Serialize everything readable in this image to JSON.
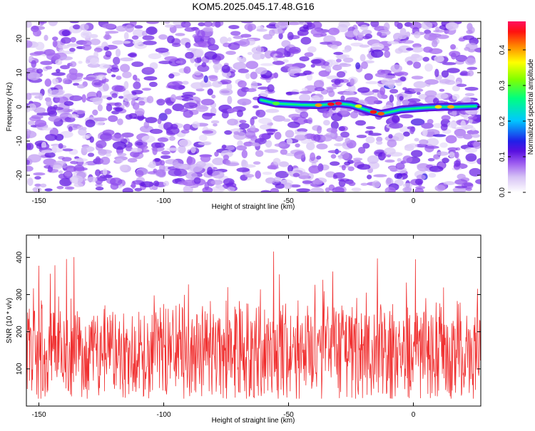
{
  "title": "KOM5.2025.045.17.48.G16",
  "chart_data": [
    {
      "type": "heatmap",
      "xlabel": "Height of straight line (km)",
      "ylabel": "Frequency (Hz)",
      "xlim": [
        -155,
        27
      ],
      "ylim": [
        -25,
        25
      ],
      "xticks": [
        -150,
        -100,
        -50,
        0
      ],
      "yticks": [
        -20,
        -10,
        0,
        10,
        20
      ],
      "colorbar": {
        "label": "Normalized spectral amplitude",
        "range": [
          0,
          0.48
        ],
        "ticks": [
          0.0,
          0.1,
          0.2,
          0.3,
          0.4
        ],
        "colormap": [
          "#ffffff",
          "#d6c2f5",
          "#9d5cf0",
          "#5a10e0",
          "#2020e8",
          "#00c8ff",
          "#00ff80",
          "#80ff00",
          "#ffff00",
          "#ff8000",
          "#ff1010",
          "#ff1060"
        ]
      },
      "signal_track": {
        "x": [
          -61,
          -55,
          -45,
          -38,
          -33,
          -30,
          -25,
          -20,
          -16,
          -13,
          -10,
          -5,
          0,
          5,
          12,
          18,
          25
        ],
        "y": [
          2,
          1,
          0.6,
          0.5,
          0.8,
          1,
          0.6,
          -0.6,
          -1.5,
          -2,
          -1.6,
          -0.8,
          -0.5,
          -0.2,
          0,
          0,
          0.2
        ],
        "peak_amplitude": 0.47
      }
    },
    {
      "type": "line",
      "xlabel": "Height of straight line (km)",
      "ylabel": "SNR (10 * v/v)",
      "xlim": [
        -155,
        27
      ],
      "ylim": [
        0,
        460
      ],
      "xticks": [
        -150,
        -100,
        -50,
        0
      ],
      "yticks": [
        100,
        200,
        300,
        400
      ],
      "series": [
        {
          "color": "#f03030",
          "mean": 150,
          "spread_low": 20,
          "spread_high": 460
        }
      ]
    }
  ]
}
